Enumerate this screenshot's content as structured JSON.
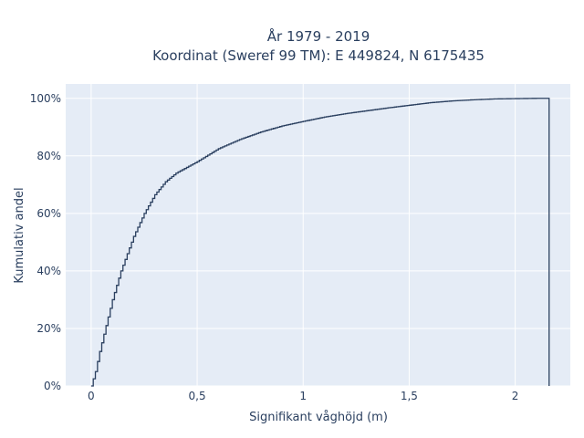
{
  "chart_data": {
    "type": "line",
    "subtype": "ecdf-step",
    "title_line1": "År 1979 - 2019",
    "title_line2": "Koordinat (Sweref 99 TM): E 449824, N 6175435",
    "xlabel": "Signifikant våghöjd (m)",
    "ylabel": "Kumulativ andel",
    "xlim": [
      -0.12,
      2.26
    ],
    "ylim": [
      0,
      1.05
    ],
    "x_ticks": [
      {
        "value": 0,
        "label": "0"
      },
      {
        "value": 0.5,
        "label": "0,5"
      },
      {
        "value": 1,
        "label": "1"
      },
      {
        "value": 1.5,
        "label": "1,5"
      },
      {
        "value": 2,
        "label": "2"
      }
    ],
    "y_ticks": [
      {
        "value": 0,
        "label": "0%"
      },
      {
        "value": 0.2,
        "label": "20%"
      },
      {
        "value": 0.4,
        "label": "40%"
      },
      {
        "value": 0.6,
        "label": "60%"
      },
      {
        "value": 0.8,
        "label": "80%"
      },
      {
        "value": 1.0,
        "label": "100%"
      }
    ],
    "grid": true,
    "legend": "none",
    "line_color": "#2a3f5f",
    "plot_bg": "#e5ecf6",
    "grid_color": "#ffffff",
    "step_width": 0.01,
    "x": [
      0,
      0.02,
      0.04,
      0.06,
      0.08,
      0.1,
      0.12,
      0.14,
      0.16,
      0.18,
      0.2,
      0.25,
      0.3,
      0.35,
      0.4,
      0.45,
      0.5,
      0.6,
      0.7,
      0.8,
      0.9,
      1.0,
      1.1,
      1.2,
      1.3,
      1.4,
      1.5,
      1.6,
      1.7,
      1.8,
      1.9,
      2.0,
      2.1,
      2.15
    ],
    "y": [
      0,
      0.05,
      0.12,
      0.18,
      0.24,
      0.3,
      0.35,
      0.4,
      0.44,
      0.48,
      0.52,
      0.6,
      0.665,
      0.71,
      0.74,
      0.76,
      0.78,
      0.825,
      0.857,
      0.883,
      0.904,
      0.92,
      0.935,
      0.947,
      0.957,
      0.967,
      0.976,
      0.985,
      0.991,
      0.995,
      0.998,
      0.999,
      1.0,
      1.0
    ],
    "drop_at": 2.16
  }
}
